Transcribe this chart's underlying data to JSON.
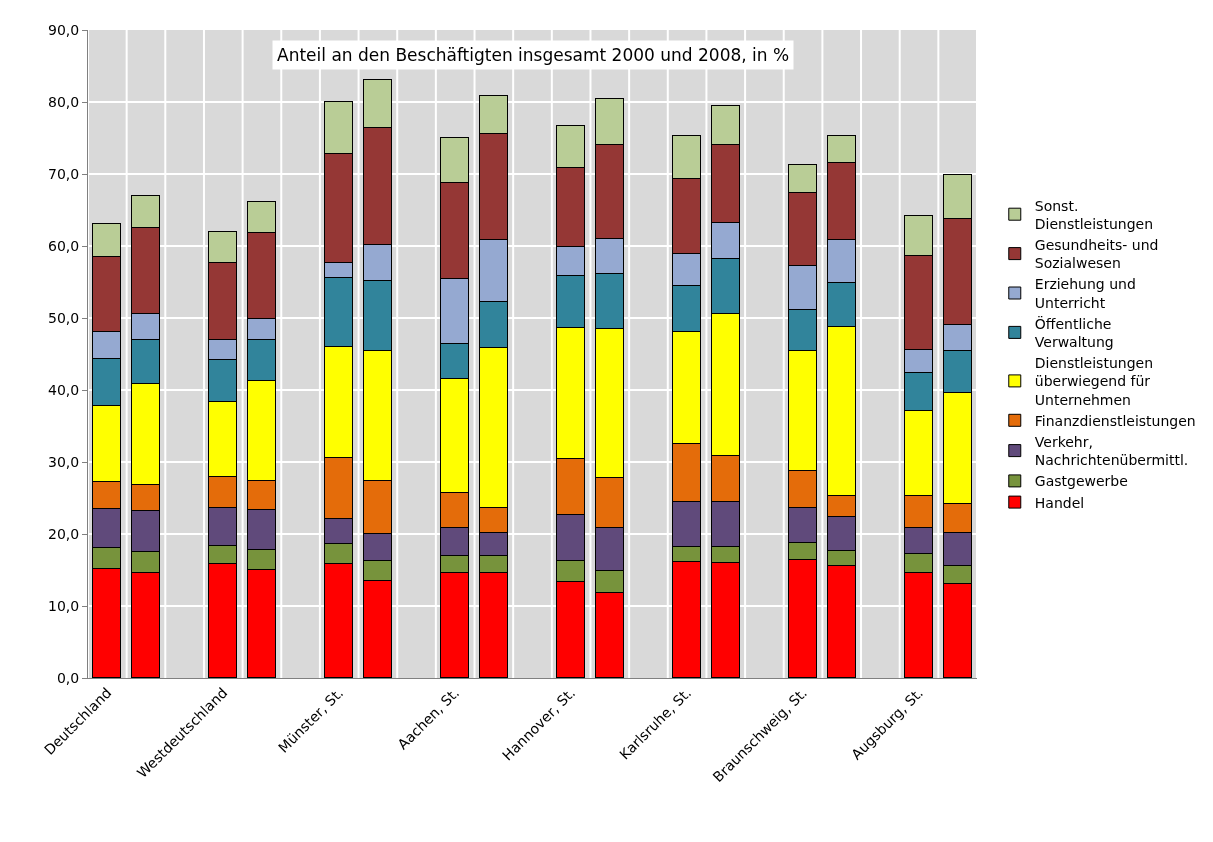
{
  "chart_data": {
    "type": "bar",
    "stacked": true,
    "title": "Anteil an den Beschäftigten insgesamt 2000 und 2008, in %",
    "categories": [
      "Deutschland",
      null,
      null,
      "Westdeutschland",
      null,
      null,
      "Münster, St.",
      null,
      null,
      "Aachen, St.",
      null,
      null,
      "Hannover, St.",
      null,
      null,
      "Karlsruhe, St.",
      null,
      null,
      "Braunschweig, St.",
      null,
      null,
      "Augsburg, St.",
      null
    ],
    "series": [
      {
        "name": "Handel",
        "color": "#ff0000",
        "values": [
          15.2,
          14.6,
          null,
          15.8,
          15.0,
          null,
          15.8,
          13.5,
          null,
          14.6,
          14.6,
          null,
          13.3,
          11.8,
          null,
          16.1,
          16.0,
          null,
          16.4,
          15.5,
          null,
          14.6,
          13.1
        ]
      },
      {
        "name": "Gastgewerbe",
        "color": "#77933c",
        "values": [
          2.8,
          2.9,
          null,
          2.5,
          2.8,
          null,
          2.8,
          2.8,
          null,
          2.4,
          2.3,
          null,
          3.0,
          3.0,
          null,
          2.1,
          2.2,
          null,
          2.3,
          2.1,
          null,
          2.6,
          2.4
        ]
      },
      {
        "name": "Verkehr, Nachrichtenübermittl.",
        "color": "#604a7b",
        "values": [
          5.5,
          5.7,
          null,
          5.3,
          5.6,
          null,
          3.5,
          3.7,
          null,
          3.9,
          3.2,
          null,
          6.3,
          6.1,
          null,
          6.2,
          6.2,
          null,
          4.9,
          4.7,
          null,
          3.6,
          4.7
        ]
      },
      {
        "name": "Finanzdienstleistungen",
        "color": "#e46c0a",
        "values": [
          3.7,
          3.6,
          null,
          4.3,
          4.0,
          null,
          8.4,
          7.4,
          null,
          4.8,
          3.5,
          null,
          7.8,
          6.9,
          null,
          8.1,
          6.5,
          null,
          5.1,
          3.0,
          null,
          4.5,
          4.0
        ]
      },
      {
        "name": "Dienstleistungen überwiegend für Unternehmen",
        "color": "#ffff00",
        "values": [
          10.6,
          14.1,
          null,
          10.5,
          13.8,
          null,
          15.5,
          18.0,
          null,
          15.8,
          22.2,
          null,
          18.2,
          20.7,
          null,
          15.5,
          19.6,
          null,
          16.7,
          23.5,
          null,
          11.8,
          15.4
        ]
      },
      {
        "name": "Öffentliche Verwaltung",
        "color": "#31849b",
        "values": [
          6.5,
          6.0,
          null,
          5.7,
          5.7,
          null,
          9.5,
          9.8,
          null,
          4.9,
          6.4,
          null,
          7.2,
          7.6,
          null,
          6.4,
          7.7,
          null,
          5.7,
          6.0,
          null,
          5.3,
          5.8
        ]
      },
      {
        "name": "Erziehung und Unterricht",
        "color": "#95a9d1",
        "values": [
          3.7,
          3.7,
          null,
          2.9,
          3.0,
          null,
          2.1,
          5.0,
          null,
          9.0,
          8.7,
          null,
          4.1,
          4.9,
          null,
          4.5,
          5.0,
          null,
          6.1,
          6.1,
          null,
          3.2,
          3.6
        ]
      },
      {
        "name": "Gesundheits- und Sozialwesen",
        "color": "#953735",
        "values": [
          10.5,
          11.9,
          null,
          10.6,
          11.9,
          null,
          15.2,
          16.2,
          null,
          13.3,
          14.6,
          null,
          10.9,
          13.0,
          null,
          10.4,
          10.8,
          null,
          10.2,
          10.6,
          null,
          13.0,
          14.8
        ]
      },
      {
        "name": "Sonst. Dienstleistungen",
        "color": "#b9cd96",
        "values": [
          4.5,
          4.5,
          null,
          4.4,
          4.3,
          null,
          7.2,
          6.6,
          null,
          6.3,
          5.3,
          null,
          5.9,
          6.4,
          null,
          6.0,
          5.4,
          null,
          3.8,
          3.8,
          null,
          5.6,
          6.0
        ]
      }
    ],
    "ylim": [
      0,
      90
    ],
    "yticks": [
      {
        "value": 0,
        "label": "0,0"
      },
      {
        "value": 10,
        "label": "10,0"
      },
      {
        "value": 20,
        "label": "20,0"
      },
      {
        "value": 30,
        "label": "30,0"
      },
      {
        "value": 40,
        "label": "40,0"
      },
      {
        "value": 50,
        "label": "50,0"
      },
      {
        "value": 60,
        "label": "60,0"
      },
      {
        "value": 70,
        "label": "70,0"
      },
      {
        "value": 80,
        "label": "80,0"
      },
      {
        "value": 90,
        "label": "90,0"
      }
    ],
    "grid": true,
    "legend": "right"
  }
}
